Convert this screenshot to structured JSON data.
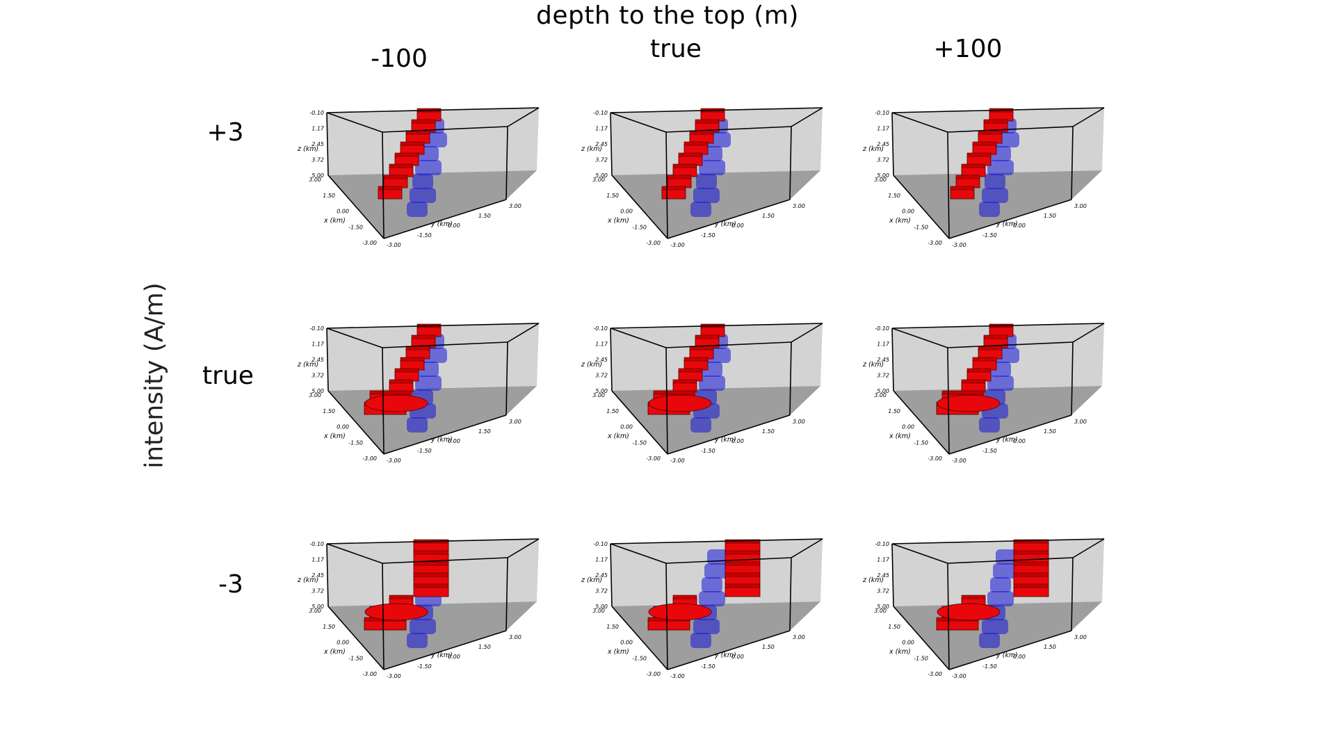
{
  "figure": {
    "top_title": "depth to the top (m)",
    "side_title": "intensity (A/m)",
    "columns": [
      "-100",
      "true",
      "+100"
    ],
    "rows": [
      "+3",
      "true",
      "-3"
    ]
  },
  "axes": {
    "z_label": "z (km)",
    "x_label": "x (km)",
    "y_label": "y (km)",
    "z_ticks": [
      "-0.10",
      "1.17",
      "2.45",
      "3.72",
      "5.00"
    ],
    "x_ticks": [
      "3.00",
      "1.50",
      "0.00",
      "-1.50",
      "-3.00"
    ],
    "y_ticks": [
      "-3.00",
      "-1.50",
      "0.00",
      "1.50",
      "3.00"
    ]
  },
  "colors": {
    "recovered_body": "#e8080c",
    "true_body": "#1515d8",
    "back_wall": "#d3d3d3",
    "floor": "#9e9e9e"
  }
}
